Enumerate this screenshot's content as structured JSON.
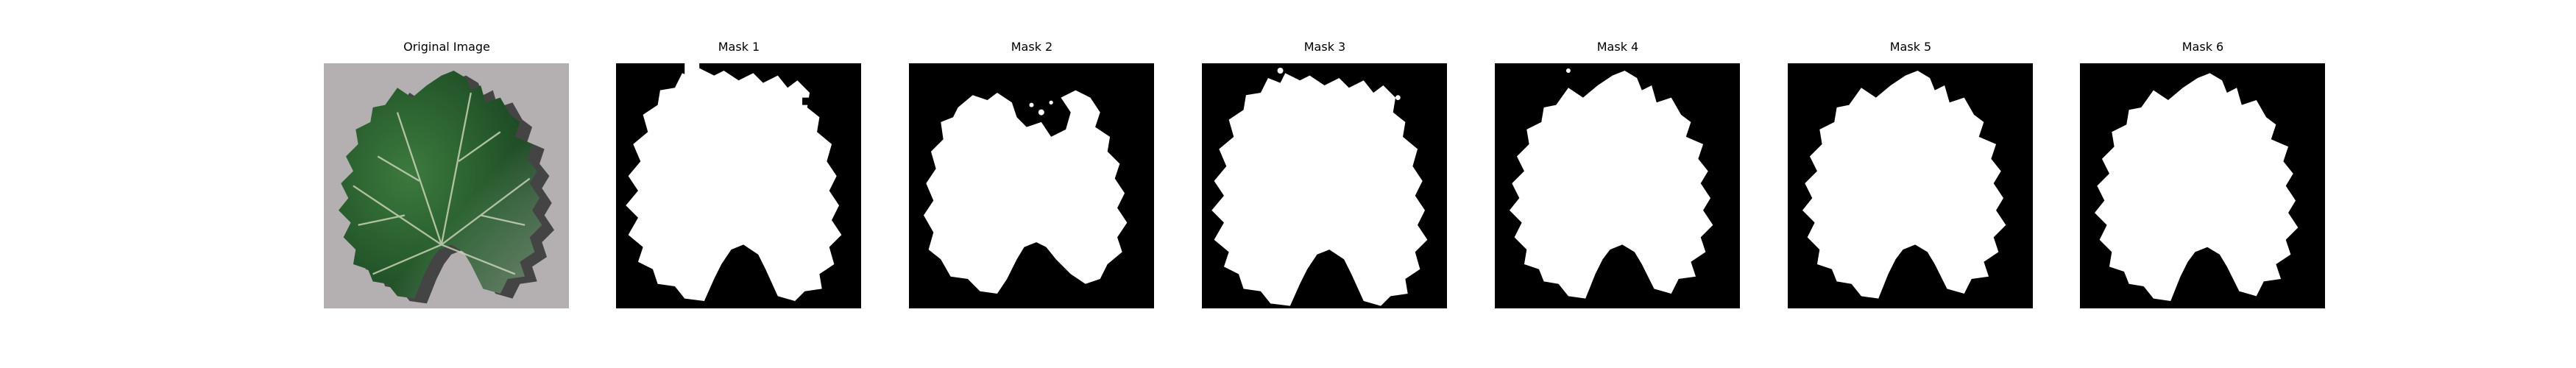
{
  "figure": {
    "panels": [
      {
        "title": "Original Image",
        "kind": "photo"
      },
      {
        "title": "Mask 1",
        "kind": "mask"
      },
      {
        "title": "Mask 2",
        "kind": "mask"
      },
      {
        "title": "Mask 3",
        "kind": "mask"
      },
      {
        "title": "Mask 4",
        "kind": "mask"
      },
      {
        "title": "Mask 5",
        "kind": "mask"
      },
      {
        "title": "Mask 6",
        "kind": "mask"
      }
    ]
  },
  "colors": {
    "background": "#ffffff",
    "mask_background": "#000000",
    "mask_foreground": "#ffffff",
    "photo_background": "#b9b3b4",
    "leaf_dark": "#1f4d28",
    "leaf_mid": "#2f6b34",
    "leaf_light": "#6f9a63",
    "vein": "#c7d2b5",
    "shadow": "#2a2a2a"
  }
}
